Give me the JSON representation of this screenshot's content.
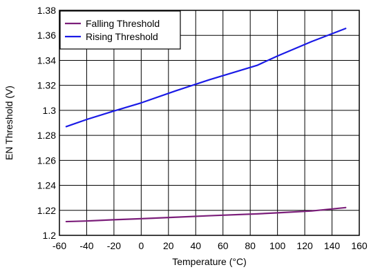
{
  "chart_data": {
    "type": "line",
    "title": "",
    "xlabel": "Temperature (°C)",
    "ylabel": "EN Threshold (V)",
    "xlim": [
      -60,
      160
    ],
    "ylim": [
      1.2,
      1.38
    ],
    "xticks": [
      -60,
      -40,
      -20,
      0,
      20,
      40,
      60,
      80,
      100,
      120,
      140,
      160
    ],
    "xtick_labels": [
      "-60",
      "-40",
      "-20",
      "0",
      "20",
      "40",
      "60",
      "80",
      "100",
      "120",
      "140",
      "160"
    ],
    "yticks": [
      1.2,
      1.22,
      1.24,
      1.26,
      1.28,
      1.3,
      1.32,
      1.34,
      1.36,
      1.38
    ],
    "ytick_labels": [
      "1.2",
      "1.22",
      "1.24",
      "1.26",
      "1.28",
      "1.3",
      "1.32",
      "1.34",
      "1.36",
      "1.38"
    ],
    "grid": true,
    "legend_position": "top-left",
    "series": [
      {
        "name": "Falling Threshold",
        "color": "#7B1E7A",
        "x": [
          -55,
          -40,
          -20,
          0,
          25,
          50,
          85,
          100,
          125,
          150
        ],
        "y": [
          1.211,
          1.2115,
          1.2125,
          1.2133,
          1.2145,
          1.2157,
          1.2172,
          1.218,
          1.2195,
          1.2222
        ]
      },
      {
        "name": "Rising Threshold",
        "color": "#1A1AE6",
        "x": [
          -55,
          -40,
          -20,
          0,
          25,
          50,
          85,
          100,
          125,
          150
        ],
        "y": [
          1.287,
          1.2927,
          1.2995,
          1.306,
          1.3155,
          1.3245,
          1.336,
          1.3435,
          1.355,
          1.3655
        ]
      }
    ]
  }
}
